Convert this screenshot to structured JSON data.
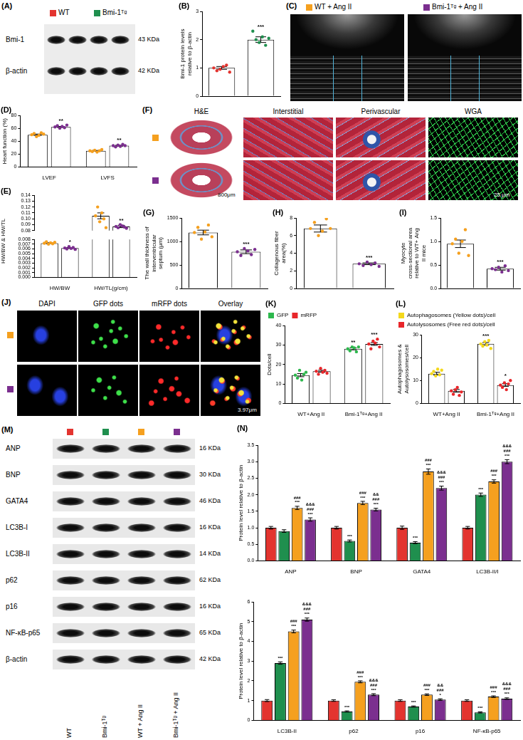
{
  "chart_data": [
    {
      "panel": "(B)",
      "type": "bar",
      "y_label": "Bmi-1 protein levels relative to β-actin",
      "categories": [
        null,
        null
      ],
      "tick_labels": "y",
      "values": [
        1.0,
        2.0
      ],
      "colors": [
        "#e3342f",
        "#1f8f4e"
      ],
      "error": [
        0.05,
        0.1
      ],
      "points": [
        [
          1.0,
          0.9,
          0.95,
          1.05,
          1.1,
          0.85
        ],
        [
          2.3,
          2.0,
          1.9,
          2.1,
          1.8,
          2.05
        ]
      ],
      "significance": [
        null,
        "***"
      ],
      "ylim": [
        0,
        3
      ],
      "yticks": [
        0,
        1,
        2,
        3
      ]
    },
    {
      "panel": "(D)",
      "type": "bar",
      "y_label": "Heart function (%)",
      "categories": [
        "LVEF",
        "LVFS"
      ],
      "series": [
        {
          "color": "#f5a01f",
          "values": [
            50,
            25
          ],
          "error": [
            1.0,
            0.6
          ],
          "points": [
            [
              50,
              52,
              47,
              49,
              53,
              51
            ],
            [
              25,
              24,
              26,
              23,
              25,
              27
            ]
          ]
        },
        {
          "color": "#7b2f8f",
          "values": [
            62,
            33
          ],
          "error": [
            0.8,
            0.7
          ],
          "points": [
            [
              62,
              64,
              60,
              63,
              61,
              65
            ],
            [
              33,
              31,
              34,
              32,
              35,
              33
            ]
          ],
          "significance": [
            "**",
            "**"
          ]
        }
      ],
      "ylim": [
        0,
        80
      ],
      "yticks": [
        0,
        20,
        40,
        60,
        80
      ]
    },
    {
      "panel": "(E)",
      "type": "bar",
      "y_label": "HW/BW & HW/TL",
      "categories": [
        "HW/BW",
        "HW/TL(g/cm)"
      ],
      "series": [
        {
          "color": "#f5a01f",
          "values": [
            0.0072,
            0.105
          ],
          "error": [
            0.0001,
            0.005
          ],
          "points": [
            [
              0.0072,
              0.0075,
              0.007,
              0.0073,
              0.0071,
              0.0074
            ],
            [
              0.105,
              0.12,
              0.095,
              0.11,
              0.1,
              0.085
            ]
          ]
        },
        {
          "color": "#7b2f8f",
          "values": [
            0.0062,
            0.087
          ],
          "error": [
            0.0001,
            0.002
          ],
          "points": [
            [
              0.0062,
              0.006,
              0.0065,
              0.0061,
              0.0063,
              0.0059
            ],
            [
              0.087,
              0.085,
              0.09,
              0.088,
              0.086,
              0.084
            ]
          ],
          "significance": [
            "*",
            "**"
          ]
        }
      ],
      "axis_segments": [
        {
          "ylim": [
            0.08,
            0.14
          ],
          "yticks": [
            0.08,
            0.09,
            {
              "value": 0.1,
              "label": "0.10"
            },
            0.11,
            0.12,
            0.13,
            0.14
          ]
        },
        {
          "ylim": [
            0,
            0.008
          ],
          "yticks": [
            {
              "value": 0,
              "label": "0.000"
            },
            {
              "value": 0.001,
              "label": "0.001"
            },
            {
              "value": 0.002,
              "label": "0.002"
            },
            {
              "value": 0.003,
              "label": "0.003"
            },
            {
              "value": 0.004,
              "label": "0.004"
            },
            {
              "value": 0.005,
              "label": "0.005"
            },
            {
              "value": 0.006,
              "label": "0.006"
            },
            {
              "value": 0.007,
              "label": "0.007"
            },
            {
              "value": 0.008,
              "label": "0.008"
            }
          ]
        }
      ]
    },
    {
      "panel": "(G)",
      "type": "bar",
      "y_label": "The wall thickness of interventricular septum (μm)",
      "categories": [
        null,
        null
      ],
      "tick_labels": "y",
      "values": [
        1190,
        780
      ],
      "colors": [
        "#f5a01f",
        "#7b2f8f"
      ],
      "error": [
        50,
        40
      ],
      "points": [
        [
          1190,
          1300,
          1050,
          1200,
          1350,
          1100
        ],
        [
          780,
          700,
          850,
          800,
          720,
          830
        ]
      ],
      "significance": [
        null,
        "***"
      ],
      "ylim": [
        0,
        1500
      ],
      "yticks": [
        0,
        500,
        1000,
        1500
      ]
    },
    {
      "panel": "(H)",
      "type": "bar",
      "y_label": "Collagenous fiber area(%)",
      "categories": [
        null,
        null
      ],
      "tick_labels": "y",
      "values": [
        6.8,
        2.8
      ],
      "colors": [
        "#f5a01f",
        "#7b2f8f"
      ],
      "error": [
        0.4,
        0.1
      ],
      "points": [
        [
          6.8,
          7.5,
          6.0,
          6.5,
          7.9,
          6.8
        ],
        [
          2.8,
          2.6,
          3.0,
          2.7,
          2.9,
          2.5
        ]
      ],
      "significance": [
        null,
        "***"
      ],
      "ylim": [
        0,
        8
      ],
      "yticks": [
        0,
        2,
        4,
        6,
        8
      ]
    },
    {
      "panel": "(I)",
      "type": "bar",
      "y_label": "Myocyte cross-sectional area relative to WT+ Ang II mice",
      "categories": [
        null,
        null
      ],
      "tick_labels": "y",
      "values": [
        0.95,
        0.42
      ],
      "colors": [
        "#f5a01f",
        "#7b2f8f"
      ],
      "error": [
        0.08,
        0.03
      ],
      "points": [
        [
          0.95,
          1.05,
          0.75,
          1.0,
          1.25,
          0.7
        ],
        [
          0.42,
          0.4,
          0.45,
          0.35,
          0.48,
          0.38
        ]
      ],
      "significance": [
        null,
        "***"
      ],
      "ylim": [
        0,
        1.5
      ],
      "yticks": [
        {
          "value": 0,
          "label": "0.0"
        },
        0.5,
        {
          "value": 1,
          "label": "1.0"
        },
        1.5
      ]
    },
    {
      "panel": "(K)",
      "type": "bar",
      "y_label": "Dots/cell",
      "categories": [
        "WT+Ang II",
        "Bmi-1ᵀᵍ+Ang II"
      ],
      "legend": "upper left",
      "series": [
        {
          "name": "GFP",
          "color": "#2db84d",
          "values": [
            14.5,
            28
          ],
          "error": [
            0.8,
            0.5
          ],
          "points": [
            [
              14.5,
              13,
              17,
              12,
              15,
              16
            ],
            [
              28,
              27,
              29,
              28.5,
              26.5,
              29
            ]
          ],
          "significance": [
            null,
            "**"
          ]
        },
        {
          "name": "mRFP",
          "color": "#e8262a",
          "values": [
            16.5,
            30.5
          ],
          "error": [
            0.5,
            0.7
          ],
          "points": [
            [
              16.5,
              15,
              18,
              16,
              17,
              15.5
            ],
            [
              30.5,
              28,
              32,
              31,
              33,
              29
            ]
          ],
          "significance": [
            null,
            "***"
          ]
        }
      ],
      "ylim": [
        0,
        40
      ],
      "yticks": [
        0,
        10,
        20,
        30,
        40
      ]
    },
    {
      "panel": "(L)",
      "type": "bar",
      "y_label": "Autophagosomes & Autolysosomes/cell",
      "categories": [
        "WT+Ang II",
        "Bmi-1ᵀᵍ+Ang II"
      ],
      "legend": "upper left",
      "series": [
        {
          "name": "Autophagosomes (Yellow dots)/cell",
          "color": "#f4d81c",
          "values": [
            13,
            26
          ],
          "error": [
            0.6,
            0.6
          ],
          "points": [
            [
              13,
              14,
              12,
              15,
              12.5,
              14.5
            ],
            [
              26,
              25,
              27,
              25.5,
              27.5,
              24
            ]
          ],
          "significance": [
            null,
            "***"
          ]
        },
        {
          "name": "Autolysosomes (Free red dots)/cell",
          "color": "#e8262a",
          "values": [
            5.5,
            8
          ],
          "error": [
            0.6,
            0.6
          ],
          "points": [
            [
              5.5,
              4,
              6,
              7,
              3.5,
              5
            ],
            [
              8,
              7,
              9,
              6,
              8.5,
              10
            ]
          ],
          "significance": [
            null,
            "*"
          ]
        }
      ],
      "ylim": [
        0,
        30
      ],
      "yticks": [
        0,
        10,
        20,
        30
      ]
    },
    {
      "panel": "(N)",
      "type": "bar",
      "y_label": "Protein level relative to β-actin",
      "categories": [
        "ANP",
        "BNP",
        "GATA4",
        "LC3B-II/I"
      ],
      "series": [
        {
          "color": "#e3342f",
          "values": [
            1.0,
            1.0,
            1.0,
            1.0
          ],
          "error": [
            0.04,
            0.04,
            0.05,
            0.04
          ]
        },
        {
          "color": "#1f8f4e",
          "values": [
            0.9,
            0.6,
            0.55,
            2.0
          ],
          "error": [
            0.04,
            0.03,
            0.03,
            0.05
          ],
          "significance": [
            null,
            "***",
            "***",
            "***"
          ]
        },
        {
          "color": "#f5a01f",
          "values": [
            1.6,
            1.75,
            2.7,
            2.4
          ],
          "error": [
            0.05,
            0.05,
            0.08,
            0.05
          ],
          "significance": [
            [
              "###",
              "***"
            ],
            [
              "###",
              "***"
            ],
            [
              "###",
              "***"
            ],
            [
              "###",
              "***"
            ]
          ]
        },
        {
          "color": "#7b2f8f",
          "values": [
            1.25,
            1.55,
            2.2,
            3.0
          ],
          "error": [
            0.05,
            0.04,
            0.06,
            0.06
          ],
          "significance": [
            [
              "&&&",
              "###",
              "***"
            ],
            [
              "&&",
              "###",
              "***"
            ],
            [
              "&&&",
              "###",
              "***"
            ],
            [
              "&&&",
              "###",
              "***"
            ]
          ]
        }
      ],
      "ylim": [
        0,
        3.5
      ],
      "yticks": [
        {
          "value": 0,
          "label": "0.0"
        },
        0.5,
        {
          "value": 1,
          "label": "1.0"
        },
        1.5,
        {
          "value": 2,
          "label": "2.0"
        },
        2.5,
        {
          "value": 3,
          "label": "3.0"
        },
        3.5
      ]
    },
    {
      "type": "bar",
      "y_label": "Protein level relative to β-actin",
      "categories": [
        "LC3B-II",
        "p62",
        "p16",
        "NF-κB-p65"
      ],
      "series": [
        {
          "color": "#e3342f",
          "values": [
            1.0,
            1.0,
            1.0,
            1.0
          ],
          "error": [
            0.05,
            0.04,
            0.04,
            0.04
          ]
        },
        {
          "color": "#1f8f4e",
          "values": [
            2.9,
            0.45,
            0.7,
            0.4
          ],
          "error": [
            0.06,
            0.03,
            0.03,
            0.03
          ],
          "significance": [
            "***",
            "***",
            "***",
            "***"
          ]
        },
        {
          "color": "#f5a01f",
          "values": [
            4.5,
            1.95,
            1.3,
            1.2
          ],
          "error": [
            0.07,
            0.05,
            0.04,
            0.04
          ],
          "significance": [
            [
              "###",
              "***"
            ],
            [
              "###",
              "***"
            ],
            [
              "###",
              "***"
            ],
            [
              "###",
              "***"
            ]
          ]
        },
        {
          "color": "#7b2f8f",
          "values": [
            5.1,
            1.3,
            1.05,
            1.1
          ],
          "error": [
            0.08,
            0.05,
            0.04,
            0.04
          ],
          "significance": [
            [
              "&&&",
              "###",
              "***"
            ],
            [
              "&&&",
              "###",
              "***"
            ],
            [
              "&&",
              "###",
              "*"
            ],
            [
              "&&&",
              "###",
              "***"
            ]
          ]
        }
      ],
      "ylim": [
        0,
        6
      ],
      "yticks": [
        0,
        1,
        2,
        3,
        4,
        5,
        6
      ]
    }
  ],
  "image_panels": {
    "A": {
      "panel": "(A)",
      "groups": [
        {
          "label": "WT",
          "color": "#e3342f"
        },
        {
          "label": "Bmi-1ᵀᵍ",
          "color": "#1f8f4e"
        }
      ],
      "rows": [
        {
          "label": "Bmi-1",
          "size": "43 KDa"
        },
        {
          "label": "β-actin",
          "size": "42 KDa"
        }
      ]
    },
    "C": {
      "panel": "(C)",
      "groups": [
        {
          "label": "WT + Ang II",
          "color": "#f5a01f"
        },
        {
          "label": "Bmi-1ᵀᵍ + Ang II",
          "color": "#7b2f8f"
        }
      ]
    },
    "F": {
      "panel": "(F)",
      "columns": [
        "H&E",
        "Interstitial",
        "Perivascular",
        "WGA"
      ],
      "row_colors": [
        "#f5a01f",
        "#7b2f8f"
      ],
      "scale_bars": [
        "800μm",
        "25 μm"
      ]
    },
    "J": {
      "panel": "(J)",
      "columns": [
        "DAPI",
        "GFP dots",
        "mRFP dots",
        "Overlay"
      ],
      "row_colors": [
        "#f5a01f",
        "#7b2f8f"
      ],
      "scale_bar": "3.97μm"
    },
    "M": {
      "panel": "(M)",
      "groups": [
        {
          "label": "WT",
          "color": "#e3342f"
        },
        {
          "label": "Bmi-1ᵀᵍ",
          "color": "#1f8f4e"
        },
        {
          "label": "WT + Ang II",
          "color": "#f5a01f"
        },
        {
          "label": "Bmi-1ᵀᵍ + Ang II",
          "color": "#7b2f8f"
        }
      ],
      "rows": [
        {
          "label": "ANP",
          "size": "16 KDa"
        },
        {
          "label": "BNP",
          "size": "30 KDa"
        },
        {
          "label": "GATA4",
          "size": "46 KDa"
        },
        {
          "label": "LC3B-I",
          "size": "16 KDa"
        },
        {
          "label": "LC3B-II",
          "size": "14 KDa"
        },
        {
          "label": "p62",
          "size": "62 KDa"
        },
        {
          "label": "p16",
          "size": "16 KDa"
        },
        {
          "label": "NF-κB-p65",
          "size": "65 KDa"
        },
        {
          "label": "β-actin",
          "size": "42 KDa"
        }
      ]
    }
  }
}
